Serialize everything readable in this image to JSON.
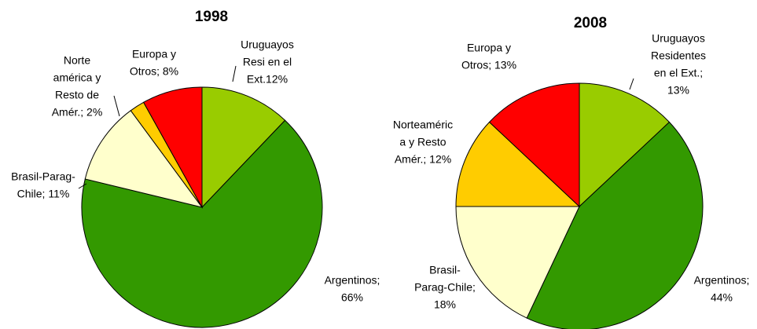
{
  "chart_data": [
    {
      "type": "pie",
      "title": "1998",
      "values": [
        12,
        66,
        11,
        2,
        8
      ],
      "value_labels": [
        [
          "Uruguayos",
          "Resi en el",
          "Ext.12%"
        ],
        [
          "Argentinos;",
          "66%"
        ],
        [
          "Brasil-Parag-",
          "Chile; 11%"
        ],
        [
          "Norte",
          "américa y",
          "Resto de",
          "Amér.; 2%"
        ],
        [
          "Europa y",
          "Otros; 8%"
        ]
      ],
      "colors": [
        "#99cc00",
        "#339900",
        "#ffffcc",
        "#ffcc00",
        "#ff0000"
      ]
    },
    {
      "type": "pie",
      "title": "2008",
      "values": [
        13,
        44,
        18,
        12,
        13
      ],
      "value_labels": [
        [
          "Uruguayos",
          "Residentes",
          "en el Ext.;",
          "13%"
        ],
        [
          "Argentinos;",
          "44%"
        ],
        [
          "Brasil-",
          "Parag-Chile;",
          "18%"
        ],
        [
          "Norteaméric",
          "a y Resto",
          "Amér.; 12%"
        ],
        [
          "Europa y",
          "Otros; 13%"
        ]
      ],
      "colors": [
        "#99cc00",
        "#339900",
        "#ffffcc",
        "#ffcc00",
        "#ff0000"
      ]
    }
  ]
}
